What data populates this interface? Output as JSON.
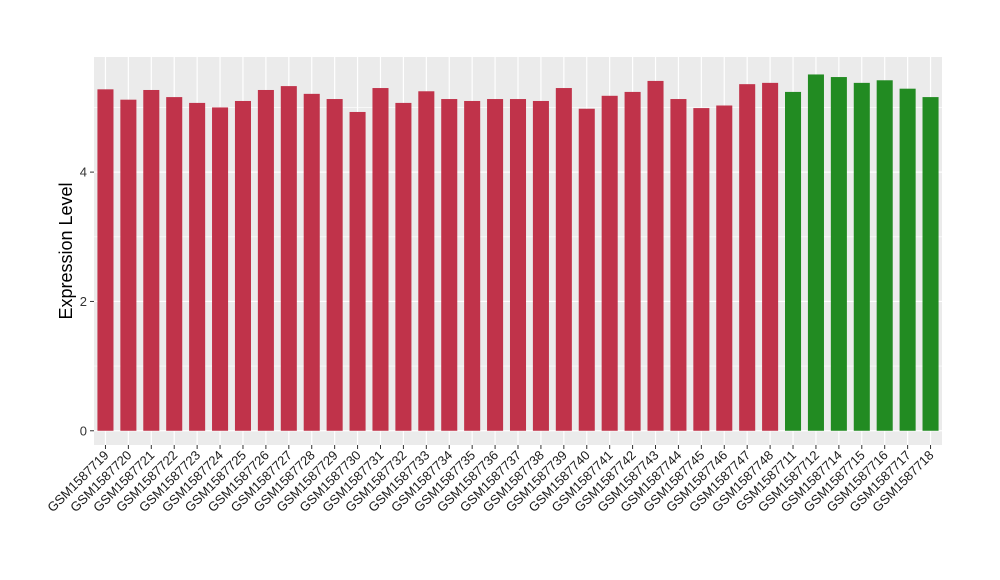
{
  "chart_data": {
    "type": "bar",
    "ylabel": "Expression Level",
    "xlabel": "",
    "ylim": [
      -0.22,
      5.78
    ],
    "yticks": [
      0,
      2,
      4
    ],
    "grid": true,
    "legend": "none",
    "colors": {
      "group1": "#c0334a",
      "group2": "#228b22",
      "panel": "#ebebeb",
      "grid": "#ffffff"
    },
    "categories": [
      "GSM1587719",
      "GSM1587720",
      "GSM1587721",
      "GSM1587722",
      "GSM1587723",
      "GSM1587724",
      "GSM1587725",
      "GSM1587726",
      "GSM1587727",
      "GSM1587728",
      "GSM1587729",
      "GSM1587730",
      "GSM1587731",
      "GSM1587732",
      "GSM1587733",
      "GSM1587734",
      "GSM1587735",
      "GSM1587736",
      "GSM1587737",
      "GSM1587738",
      "GSM1587739",
      "GSM1587740",
      "GSM1587741",
      "GSM1587742",
      "GSM1587743",
      "GSM1587744",
      "GSM1587745",
      "GSM1587746",
      "GSM1587747",
      "GSM1587748",
      "GSM1587711",
      "GSM1587712",
      "GSM1587714",
      "GSM1587715",
      "GSM1587716",
      "GSM1587717",
      "GSM1587718"
    ],
    "values": [
      5.28,
      5.12,
      5.27,
      5.16,
      5.07,
      5.0,
      5.1,
      5.27,
      5.33,
      5.21,
      5.13,
      4.93,
      5.3,
      5.07,
      5.25,
      5.13,
      5.1,
      5.13,
      5.13,
      5.1,
      5.3,
      4.98,
      5.18,
      5.24,
      5.41,
      5.13,
      4.99,
      5.03,
      5.36,
      5.38,
      5.24,
      5.51,
      5.47,
      5.38,
      5.42,
      5.29,
      5.16
    ],
    "groups": [
      "group1",
      "group1",
      "group1",
      "group1",
      "group1",
      "group1",
      "group1",
      "group1",
      "group1",
      "group1",
      "group1",
      "group1",
      "group1",
      "group1",
      "group1",
      "group1",
      "group1",
      "group1",
      "group1",
      "group1",
      "group1",
      "group1",
      "group1",
      "group1",
      "group1",
      "group1",
      "group1",
      "group1",
      "group1",
      "group1",
      "group2",
      "group2",
      "group2",
      "group2",
      "group2",
      "group2",
      "group2"
    ]
  }
}
